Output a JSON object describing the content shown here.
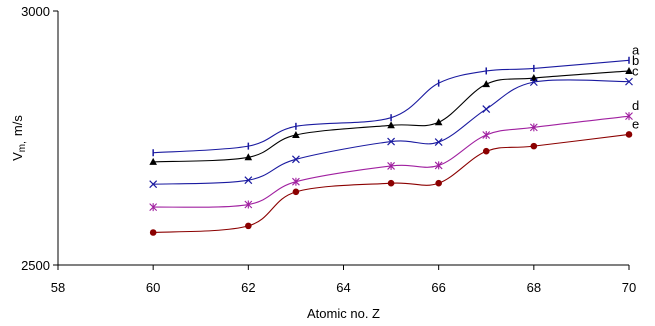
{
  "chart_data": {
    "type": "line",
    "xlabel": "Atomic no. Z",
    "ylabel": "V",
    "ylabel_sub": "m,",
    "ylabel_unit": "m/s",
    "xlim": [
      58,
      70
    ],
    "ylim": [
      2500,
      3000
    ],
    "x_ticks": [
      58,
      60,
      62,
      64,
      66,
      68,
      70
    ],
    "y_ticks": [
      2500,
      3000
    ],
    "y_tick_labels": [
      "2500",
      "3000"
    ],
    "x_tick_labels": [
      "58",
      "60",
      "62",
      "64",
      "66",
      "68",
      "70"
    ],
    "grid": false,
    "x": [
      60,
      62,
      63,
      65,
      66,
      67,
      68,
      70
    ],
    "series": [
      {
        "name": "a",
        "marker": "bar",
        "color": "#1a1aa0",
        "values": [
          2721,
          2734,
          2773,
          2790,
          2858,
          2882,
          2887,
          2903
        ]
      },
      {
        "name": "b",
        "marker": "triangle",
        "color": "#000000",
        "values": [
          2703,
          2712,
          2756,
          2775,
          2781,
          2856,
          2868,
          2882
        ]
      },
      {
        "name": "c",
        "marker": "x",
        "color": "#1a1aa0",
        "values": [
          2659,
          2667,
          2708,
          2743,
          2742,
          2807,
          2860,
          2861
        ]
      },
      {
        "name": "d",
        "marker": "star",
        "color": "#a020a0",
        "values": [
          2614,
          2619,
          2664,
          2695,
          2696,
          2756,
          2771,
          2793
        ]
      },
      {
        "name": "e",
        "marker": "dot",
        "color": "#8b0000",
        "values": [
          2564,
          2577,
          2644,
          2661,
          2661,
          2724,
          2734,
          2757
        ]
      }
    ]
  }
}
